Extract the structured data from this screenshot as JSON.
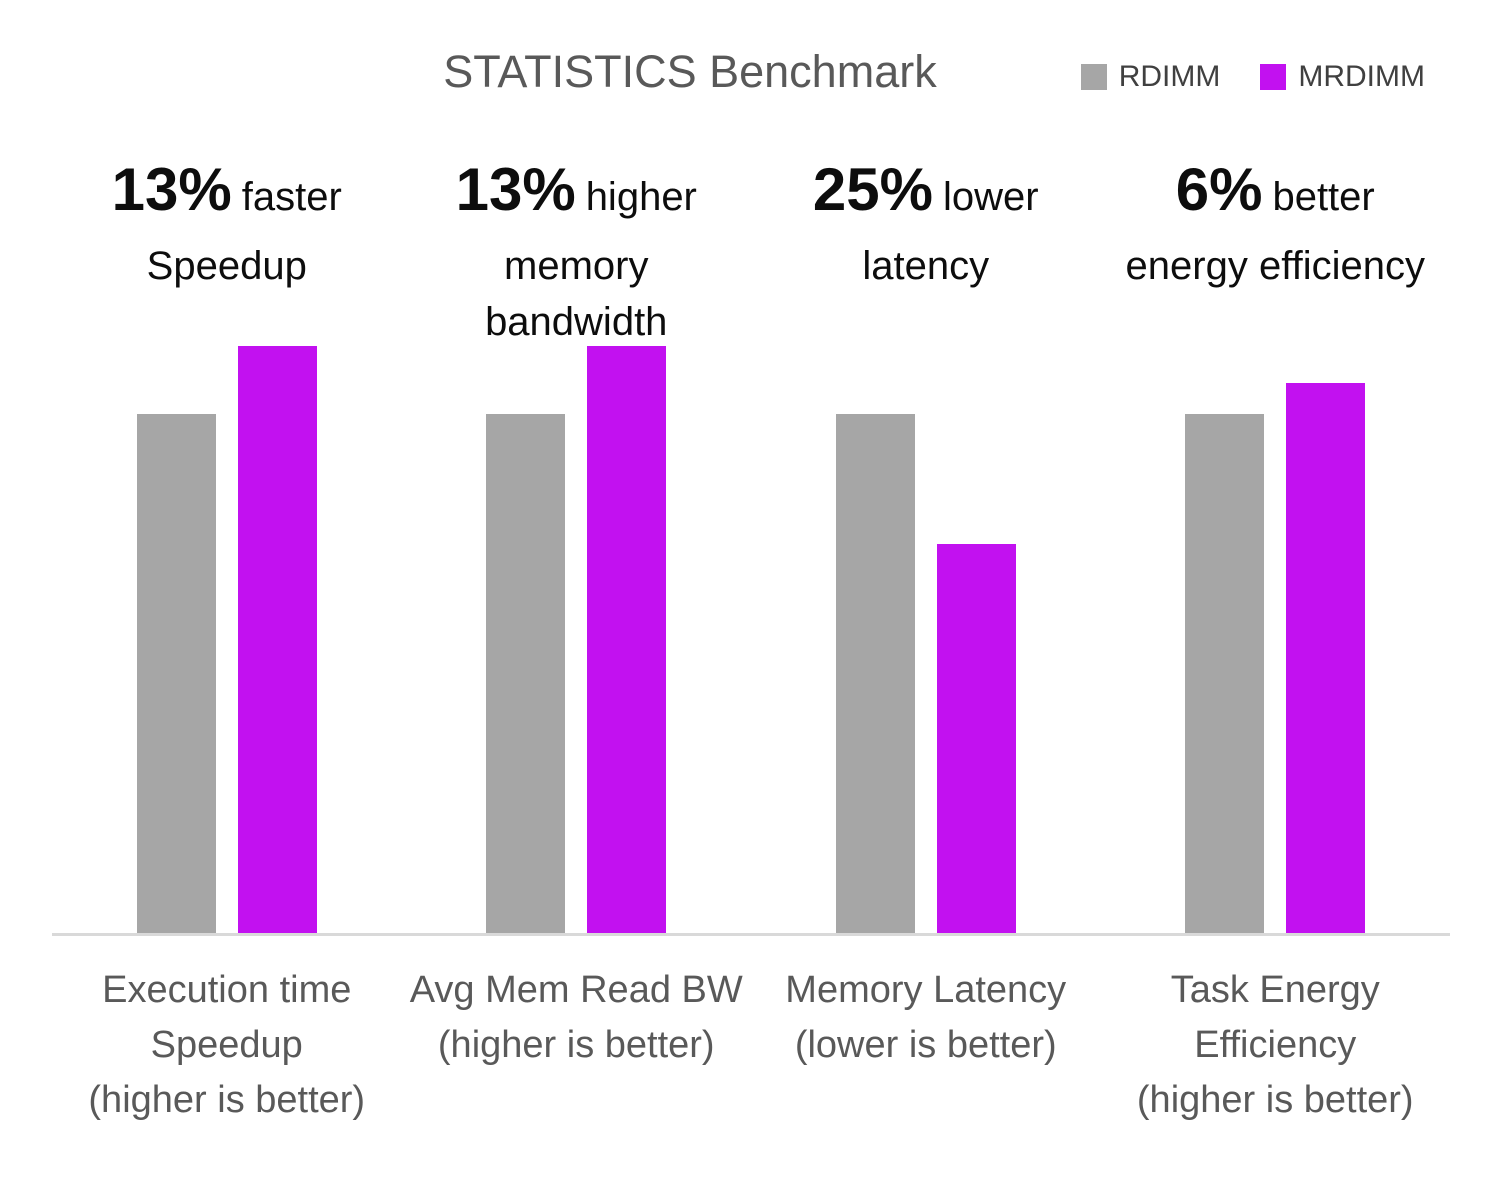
{
  "title": "STATISTICS Benchmark",
  "colors": {
    "bar_rdimm": "#a6a6a6",
    "bar_mrdimm": "#c211f0",
    "title_text": "#595959",
    "axis_label_text": "#595959",
    "annotation_text": "#0d0d0d",
    "legend_text": "#404040",
    "baseline": "#d9d9d9"
  },
  "chart_data": {
    "type": "bar",
    "title": "STATISTICS Benchmark",
    "value_basis": "normalized, RDIMM = 1.0",
    "categories": [
      "Execution time Speedup (higher is better)",
      "Avg Mem Read BW (higher is better)",
      "Memory Latency (lower is better)",
      "Task Energy Efficiency (higher is better)"
    ],
    "series": [
      {
        "name": "RDIMM",
        "color": "#a6a6a6",
        "values": [
          1.0,
          1.0,
          1.0,
          1.0
        ]
      },
      {
        "name": "MRDIMM",
        "color": "#c211f0",
        "values": [
          1.13,
          1.13,
          0.75,
          1.06
        ]
      }
    ],
    "ylim": [
      0,
      1.5
    ],
    "grid": false,
    "y_axis_visible": false,
    "x_axis_line": true,
    "legend_position": "top-right",
    "groups": [
      {
        "annotation": {
          "pct": "13%",
          "word": "faster",
          "lines": [
            "Speedup"
          ]
        },
        "label_lines": [
          "Execution time",
          "Speedup",
          "(higher is better)"
        ]
      },
      {
        "annotation": {
          "pct": "13%",
          "word": "higher",
          "lines": [
            "memory",
            "bandwidth"
          ]
        },
        "label_lines": [
          "Avg Mem Read BW",
          "(higher is better)"
        ]
      },
      {
        "annotation": {
          "pct": "25%",
          "word": "lower",
          "lines": [
            "latency"
          ]
        },
        "label_lines": [
          "Memory Latency",
          "(lower is better)"
        ]
      },
      {
        "annotation": {
          "pct": "6%",
          "word": "better",
          "lines": [
            "energy efficiency"
          ]
        },
        "label_lines": [
          "Task Energy",
          "Efficiency",
          "(higher is better)"
        ]
      }
    ]
  }
}
